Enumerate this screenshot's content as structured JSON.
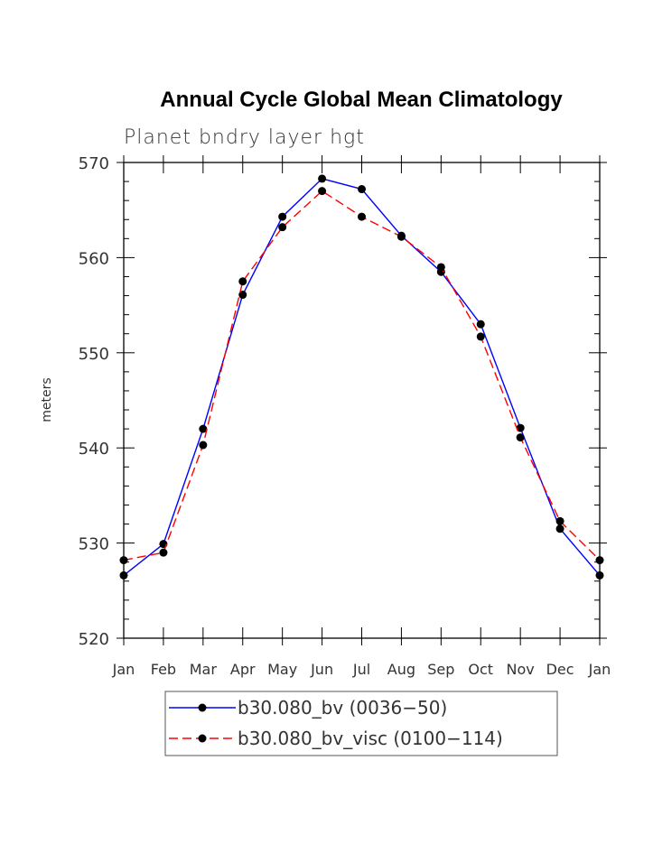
{
  "chart_data": {
    "type": "line",
    "title": "Annual Cycle Global Mean Climatology",
    "subtitle": "Planet bndry layer hgt",
    "ylabel": "meters",
    "xlabel": "",
    "categories": [
      "Jan",
      "Feb",
      "Mar",
      "Apr",
      "May",
      "Jun",
      "Jul",
      "Aug",
      "Sep",
      "Oct",
      "Nov",
      "Dec",
      "Jan"
    ],
    "ylim": [
      520,
      570
    ],
    "yticks": [
      "520",
      "530",
      "540",
      "550",
      "560",
      "570"
    ],
    "grid": false,
    "legend_position": "bottom",
    "series": [
      {
        "name": "b30.080_bv (0036−50)",
        "color": "#0000ff",
        "dash": "solid",
        "values": [
          526.6,
          529.9,
          542.0,
          556.1,
          564.3,
          568.3,
          567.2,
          562.3,
          558.5,
          553.0,
          542.1,
          531.5,
          526.6
        ]
      },
      {
        "name": "b30.080_bv_visc (0100−114)",
        "color": "#ff0000",
        "dash": "dashed",
        "values": [
          528.2,
          529.0,
          540.3,
          557.5,
          563.2,
          567.0,
          564.3,
          562.2,
          559.0,
          551.7,
          541.1,
          532.3,
          528.2
        ]
      }
    ]
  }
}
